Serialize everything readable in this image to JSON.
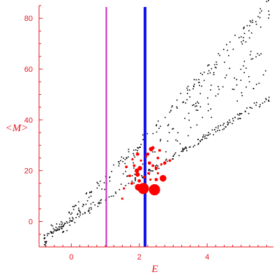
{
  "chart_data": {
    "type": "scatter",
    "xlabel": "E",
    "ylabel": "<M>",
    "xlim": [
      -0.95,
      5.95
    ],
    "ylim": [
      -10,
      85
    ],
    "xticks": [
      0,
      2,
      4
    ],
    "yticks": [
      0,
      20,
      40,
      60,
      80
    ],
    "grid": false,
    "legend": "none",
    "colors": {
      "axis": "#e8141e",
      "cloud": "#000000",
      "highlight": "#ff0000",
      "line_magenta": "#cc22cc",
      "line_blue": "#1111ee"
    },
    "vertical_lines": [
      {
        "x": 1.03,
        "color": "#cc22cc",
        "style": "thin"
      },
      {
        "x": 2.17,
        "color": "#1111ee",
        "style": "thick"
      }
    ],
    "series": [
      {
        "marker": "small-black-dot",
        "bands": [
          {
            "x_from": -0.8,
            "x_to": 5.85,
            "y_at_start": -8,
            "y_at_end": 84,
            "spread": 4,
            "count": 170
          },
          {
            "x_from": -0.8,
            "x_to": 5.85,
            "y_at_start": -6,
            "y_at_end": 49,
            "spread": 1.5,
            "count": 190
          },
          {
            "x_from": -0.8,
            "x_to": 5.85,
            "y_at_start": -7,
            "y_at_end": 66,
            "spread": 9,
            "count": 150
          }
        ]
      },
      {
        "marker": "red-dot",
        "points": [
          {
            "x": 2.12,
            "y": 13,
            "size": 5
          },
          {
            "x": 2.45,
            "y": 12.5,
            "size": 5
          },
          {
            "x": 1.97,
            "y": 13.5,
            "size": 3
          },
          {
            "x": 2.7,
            "y": 17,
            "size": 3
          },
          {
            "x": 1.93,
            "y": 20,
            "size": 2
          },
          {
            "x": 1.95,
            "y": 18.5,
            "size": 2
          },
          {
            "x": 2.02,
            "y": 21,
            "size": 2
          },
          {
            "x": 2.35,
            "y": 28.5,
            "size": 2
          },
          {
            "x": 2.4,
            "y": 29,
            "size": 1.5
          },
          {
            "x": 1.95,
            "y": 26.5,
            "size": 1.5
          },
          {
            "x": 2.25,
            "y": 26.5,
            "size": 1.5
          },
          {
            "x": 2.75,
            "y": 23,
            "size": 1.5
          },
          {
            "x": 2.3,
            "y": 23,
            "size": 1.5
          },
          {
            "x": 2.5,
            "y": 16.5,
            "size": 1.5
          },
          {
            "x": 2.5,
            "y": 21,
            "size": 1.5
          },
          {
            "x": 2.0,
            "y": 16,
            "size": 1.5
          },
          {
            "x": 2.4,
            "y": 22,
            "size": 1.2
          },
          {
            "x": 2.55,
            "y": 25,
            "size": 1.2
          },
          {
            "x": 2.6,
            "y": 28,
            "size": 1.2
          },
          {
            "x": 2.9,
            "y": 24,
            "size": 1.2
          },
          {
            "x": 1.62,
            "y": 21.5,
            "size": 1.2
          },
          {
            "x": 1.72,
            "y": 18,
            "size": 1.2
          },
          {
            "x": 1.55,
            "y": 13,
            "size": 1
          },
          {
            "x": 1.5,
            "y": 9,
            "size": 1
          },
          {
            "x": 1.85,
            "y": 22,
            "size": 1.2
          },
          {
            "x": 2.15,
            "y": 17.5,
            "size": 1.2
          },
          {
            "x": 2.28,
            "y": 19,
            "size": 1.2
          },
          {
            "x": 2.33,
            "y": 16.5,
            "size": 1
          },
          {
            "x": 2.55,
            "y": 19,
            "size": 1
          },
          {
            "x": 2.65,
            "y": 22.5,
            "size": 1
          },
          {
            "x": 1.78,
            "y": 15,
            "size": 1.2
          },
          {
            "x": 1.8,
            "y": 24.5,
            "size": 1
          },
          {
            "x": 2.05,
            "y": 24,
            "size": 1
          },
          {
            "x": 2.2,
            "y": 25.5,
            "size": 1
          }
        ]
      }
    ]
  }
}
